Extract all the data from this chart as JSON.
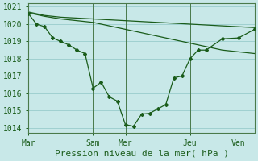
{
  "background_color": "#c8e8e8",
  "grid_color": "#99cccc",
  "line_color": "#1a5c1a",
  "marker_color": "#1a5c1a",
  "line1_x": [
    0,
    0.5,
    1,
    1.5,
    2,
    2.5,
    3,
    3.5,
    4,
    4.5,
    5,
    5.5,
    6,
    6.5,
    7,
    7.5,
    8,
    8.5,
    9,
    9.5,
    10,
    10.5,
    11,
    12,
    13,
    14
  ],
  "line1_y": [
    1020.6,
    1020.0,
    1019.85,
    1019.2,
    1019.0,
    1018.8,
    1018.5,
    1018.3,
    1016.3,
    1016.65,
    1015.8,
    1015.55,
    1014.2,
    1014.1,
    1014.8,
    1014.85,
    1015.1,
    1015.35,
    1016.9,
    1017.0,
    1018.0,
    1018.5,
    1018.5,
    1019.15,
    1019.2,
    1019.7
  ],
  "line2_x": [
    0,
    1,
    2,
    3,
    4,
    5,
    6,
    7,
    8,
    9,
    10,
    11,
    12,
    13,
    14
  ],
  "line2_y": [
    1020.7,
    1020.5,
    1020.4,
    1020.35,
    1020.3,
    1020.25,
    1020.2,
    1020.15,
    1020.1,
    1020.05,
    1020.0,
    1019.95,
    1019.9,
    1019.85,
    1019.8
  ],
  "line3_x": [
    0,
    1,
    2,
    3,
    4,
    5,
    6,
    7,
    8,
    9,
    10,
    11,
    12,
    13,
    14
  ],
  "line3_y": [
    1020.65,
    1020.45,
    1020.3,
    1020.2,
    1020.1,
    1019.9,
    1019.7,
    1019.5,
    1019.3,
    1019.1,
    1018.9,
    1018.7,
    1018.5,
    1018.4,
    1018.3
  ],
  "ytick_min": 1014,
  "ytick_max": 1021,
  "xlim_min": 0,
  "xlim_max": 14,
  "ylim_min": 1013.7,
  "ylim_max": 1021.2,
  "day_labels": [
    "Mar",
    "Sam",
    "Mer",
    "Jeu",
    "Ven"
  ],
  "day_positions": [
    0,
    4,
    6,
    10,
    13
  ],
  "xlabel": "Pression niveau de la mer( hPa )",
  "xlabel_fontsize": 8,
  "tick_fontsize": 7
}
